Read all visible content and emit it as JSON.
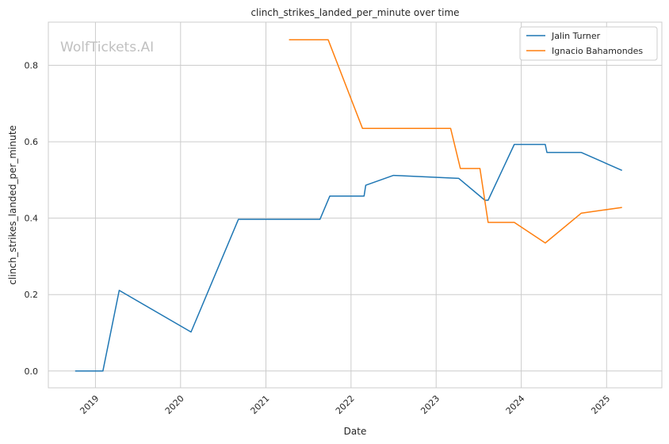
{
  "chart_data": {
    "type": "line",
    "title": "clinch_strikes_landed_per_minute over time",
    "xlabel": "Date",
    "ylabel": "clinch_strikes_landed_per_minute",
    "watermark": "WolfTickets.AI",
    "x_ticks": [
      "2019",
      "2020",
      "2021",
      "2022",
      "2023",
      "2024",
      "2025"
    ],
    "y_ticks": [
      "0.0",
      "0.2",
      "0.4",
      "0.6",
      "0.8"
    ],
    "xlim": [
      "2018-06-13",
      "2025-08-26"
    ],
    "ylim": [
      -0.044,
      0.913
    ],
    "grid": true,
    "legend_position": "top-right",
    "series": [
      {
        "name": "Jalin Turner",
        "color": "#1f77b4",
        "points": [
          [
            "2018-10-06",
            0.0
          ],
          [
            "2019-02-02",
            0.0
          ],
          [
            "2019-04-13",
            0.211
          ],
          [
            "2020-02-15",
            0.102
          ],
          [
            "2020-09-05",
            0.397
          ],
          [
            "2021-08-21",
            0.397
          ],
          [
            "2021-10-02",
            0.458
          ],
          [
            "2022-02-26",
            0.458
          ],
          [
            "2022-03-05",
            0.486
          ],
          [
            "2022-07-02",
            0.512
          ],
          [
            "2023-04-08",
            0.504
          ],
          [
            "2023-07-29",
            0.447
          ],
          [
            "2023-08-12",
            0.447
          ],
          [
            "2023-12-02",
            0.593
          ],
          [
            "2024-04-13",
            0.593
          ],
          [
            "2024-04-20",
            0.572
          ],
          [
            "2024-09-14",
            0.572
          ],
          [
            "2025-03-08",
            0.525
          ]
        ]
      },
      {
        "name": "Ignacio Bahamondes",
        "color": "#ff7f0e",
        "points": [
          [
            "2021-04-10",
            0.867
          ],
          [
            "2021-09-25",
            0.867
          ],
          [
            "2022-02-19",
            0.635
          ],
          [
            "2023-03-04",
            0.635
          ],
          [
            "2023-04-15",
            0.53
          ],
          [
            "2023-07-08",
            0.53
          ],
          [
            "2023-08-12",
            0.389
          ],
          [
            "2023-12-02",
            0.389
          ],
          [
            "2024-04-13",
            0.335
          ],
          [
            "2024-09-14",
            0.413
          ],
          [
            "2025-03-08",
            0.428
          ]
        ]
      }
    ]
  }
}
